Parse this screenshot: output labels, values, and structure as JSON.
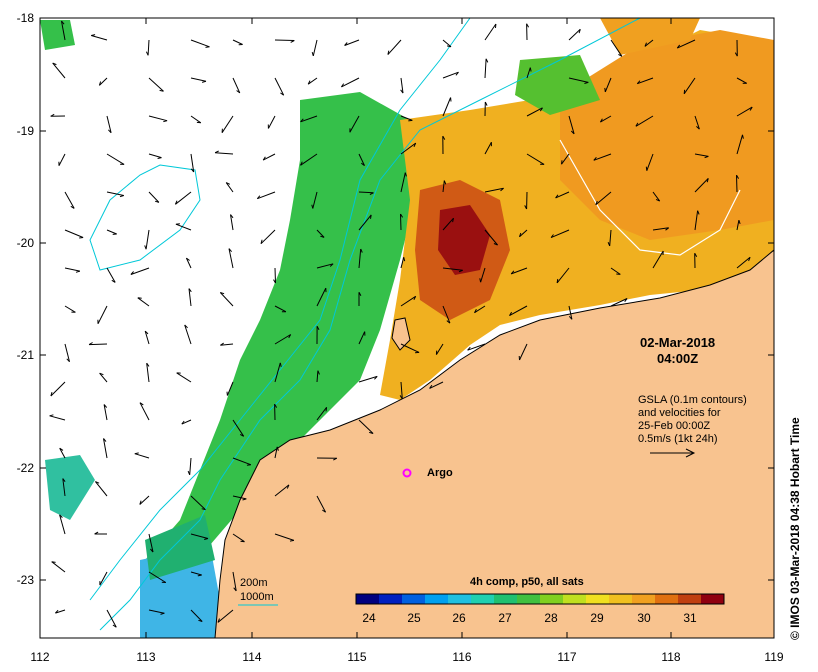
{
  "map": {
    "date": "02-Mar-2018",
    "time": "04:00Z",
    "gsla_lines": [
      "GSLA (0.1m contours)",
      "and velocities for",
      "25-Feb 00:00Z",
      "0.5m/s (1kt 24h)"
    ],
    "copyright": "© IMOS 03-Mar-2018 04:38 Hobart Time",
    "argo_label": "Argo",
    "legend_200": "200m",
    "legend_1000": "1000m",
    "colorbar_title": "4h comp, p50, all sats",
    "colorbar_ticks": [
      "24",
      "25",
      "26",
      "27",
      "28",
      "29",
      "30",
      "31"
    ],
    "lon_ticks": [
      "112",
      "113",
      "114",
      "115",
      "116",
      "117",
      "118",
      "119"
    ],
    "lat_ticks": [
      "-18",
      "-19",
      "-20",
      "-21",
      "-22",
      "-23"
    ],
    "colors": {
      "land": "#f8c38f",
      "contour_200": "#00c8d8",
      "contour_1000": "#00c8d8",
      "argo": "#ff00ff",
      "sst_cool": "#3fb5e6",
      "sst_green": "#35c04a",
      "sst_yellow": "#f0c020",
      "sst_orange": "#f09020",
      "sst_red": "#9a1010"
    }
  }
}
